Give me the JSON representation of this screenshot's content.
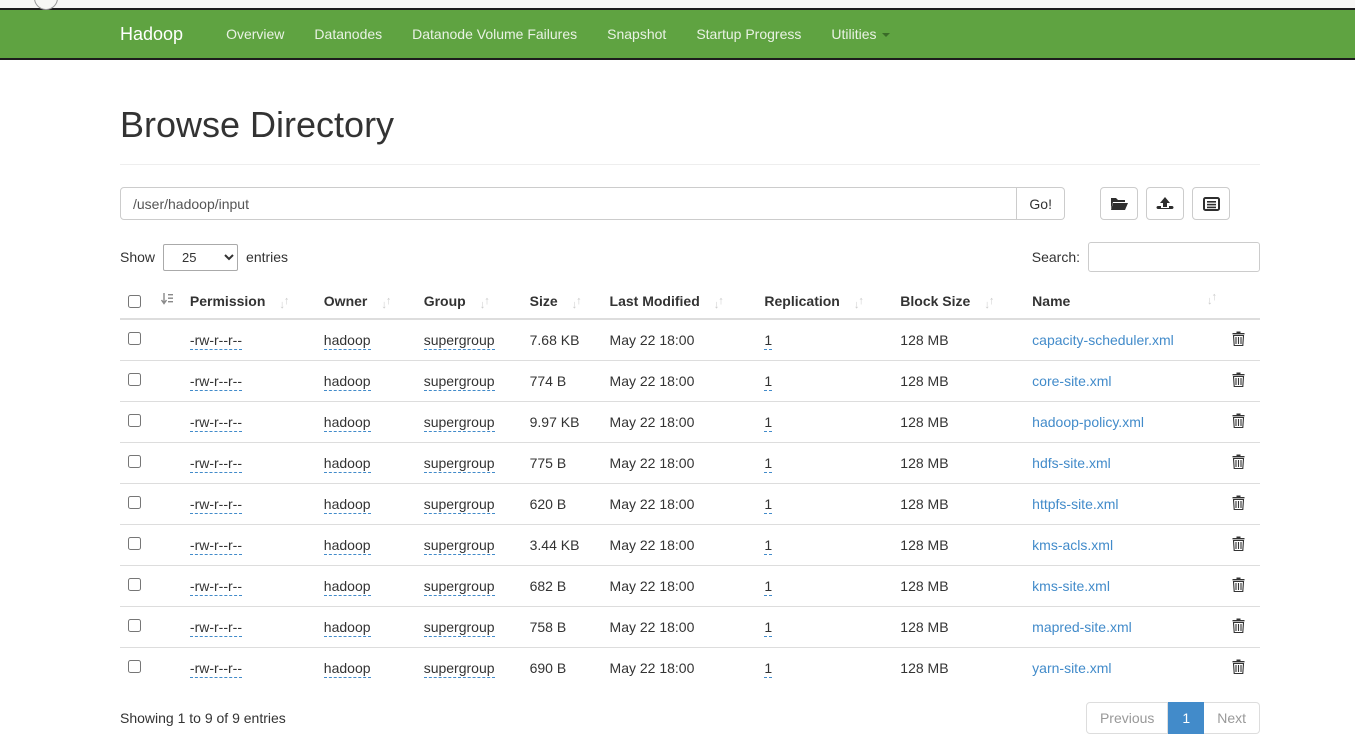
{
  "navbar": {
    "brand": "Hadoop",
    "items": [
      {
        "label": "Overview"
      },
      {
        "label": "Datanodes"
      },
      {
        "label": "Datanode Volume Failures"
      },
      {
        "label": "Snapshot"
      },
      {
        "label": "Startup Progress"
      },
      {
        "label": "Utilities",
        "has_caret": true
      }
    ]
  },
  "page": {
    "title": "Browse Directory"
  },
  "toolbar": {
    "path_value": "/user/hadoop/input",
    "go_label": "Go!",
    "icons": [
      "folder-open-icon",
      "upload-icon",
      "list-alt-icon"
    ]
  },
  "controls": {
    "show_label": "Show",
    "page_size": "25",
    "entries_label": "entries",
    "search_label": "Search:",
    "search_value": ""
  },
  "table": {
    "columns": [
      "Permission",
      "Owner",
      "Group",
      "Size",
      "Last Modified",
      "Replication",
      "Block Size",
      "Name"
    ],
    "rows": [
      {
        "permission": "-rw-r--r--",
        "owner": "hadoop",
        "group": "supergroup",
        "size": "7.68 KB",
        "modified": "May 22 18:00",
        "replication": "1",
        "block_size": "128 MB",
        "name": "capacity-scheduler.xml"
      },
      {
        "permission": "-rw-r--r--",
        "owner": "hadoop",
        "group": "supergroup",
        "size": "774 B",
        "modified": "May 22 18:00",
        "replication": "1",
        "block_size": "128 MB",
        "name": "core-site.xml"
      },
      {
        "permission": "-rw-r--r--",
        "owner": "hadoop",
        "group": "supergroup",
        "size": "9.97 KB",
        "modified": "May 22 18:00",
        "replication": "1",
        "block_size": "128 MB",
        "name": "hadoop-policy.xml"
      },
      {
        "permission": "-rw-r--r--",
        "owner": "hadoop",
        "group": "supergroup",
        "size": "775 B",
        "modified": "May 22 18:00",
        "replication": "1",
        "block_size": "128 MB",
        "name": "hdfs-site.xml"
      },
      {
        "permission": "-rw-r--r--",
        "owner": "hadoop",
        "group": "supergroup",
        "size": "620 B",
        "modified": "May 22 18:00",
        "replication": "1",
        "block_size": "128 MB",
        "name": "httpfs-site.xml"
      },
      {
        "permission": "-rw-r--r--",
        "owner": "hadoop",
        "group": "supergroup",
        "size": "3.44 KB",
        "modified": "May 22 18:00",
        "replication": "1",
        "block_size": "128 MB",
        "name": "kms-acls.xml"
      },
      {
        "permission": "-rw-r--r--",
        "owner": "hadoop",
        "group": "supergroup",
        "size": "682 B",
        "modified": "May 22 18:00",
        "replication": "1",
        "block_size": "128 MB",
        "name": "kms-site.xml"
      },
      {
        "permission": "-rw-r--r--",
        "owner": "hadoop",
        "group": "supergroup",
        "size": "758 B",
        "modified": "May 22 18:00",
        "replication": "1",
        "block_size": "128 MB",
        "name": "mapred-site.xml"
      },
      {
        "permission": "-rw-r--r--",
        "owner": "hadoop",
        "group": "supergroup",
        "size": "690 B",
        "modified": "May 22 18:00",
        "replication": "1",
        "block_size": "128 MB",
        "name": "yarn-site.xml"
      }
    ]
  },
  "footer": {
    "info": "Showing 1 to 9 of 9 entries",
    "pagination": {
      "prev": "Previous",
      "current": "1",
      "next": "Next"
    }
  },
  "colors": {
    "navbar_green": "#5fa341",
    "link_blue": "#428bca",
    "pagination_active": "#428bca",
    "editable_dash": "#428bca",
    "text": "#333333"
  }
}
